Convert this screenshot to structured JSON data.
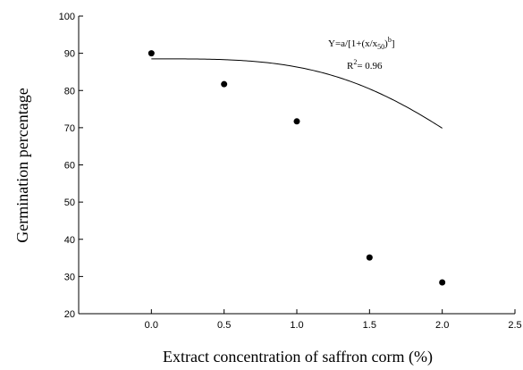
{
  "chart_data": {
    "type": "scatter",
    "xlabel": "Extract concentration of saffron corm (%)",
    "ylabel": "Germination percentage",
    "xlim": [
      -0.5,
      2.5
    ],
    "ylim": [
      20,
      100
    ],
    "xticks": [
      0.0,
      0.5,
      1.0,
      1.5,
      2.0,
      2.5
    ],
    "xtick_labels": [
      "0.0",
      "0.5",
      "1.0",
      "1.5",
      "2.0",
      "2.5"
    ],
    "yticks": [
      20,
      30,
      40,
      50,
      60,
      70,
      80,
      90,
      100
    ],
    "ytick_labels": [
      "20",
      "30",
      "40",
      "50",
      "60",
      "70",
      "80",
      "90",
      "100"
    ],
    "grid": false,
    "points": [
      {
        "x": 0.0,
        "y": 90.0
      },
      {
        "x": 0.5,
        "y": 81.7
      },
      {
        "x": 1.0,
        "y": 71.7
      },
      {
        "x": 1.5,
        "y": 35.1
      },
      {
        "x": 2.0,
        "y": 28.4
      }
    ],
    "fit": {
      "model": "Y=a/[1+(x/x50)^b]",
      "a": 88.5,
      "x50": 2.95,
      "b": 3.4,
      "x_range": [
        0.0,
        2.0
      ]
    },
    "equation_label": {
      "main": "Y=a/[1+(x/x",
      "sub": "50",
      "close": ")",
      "sup": "b",
      "end": "]"
    },
    "r2_label": {
      "prefix": "R",
      "sup": "2",
      "suffix": "= 0.96"
    }
  }
}
